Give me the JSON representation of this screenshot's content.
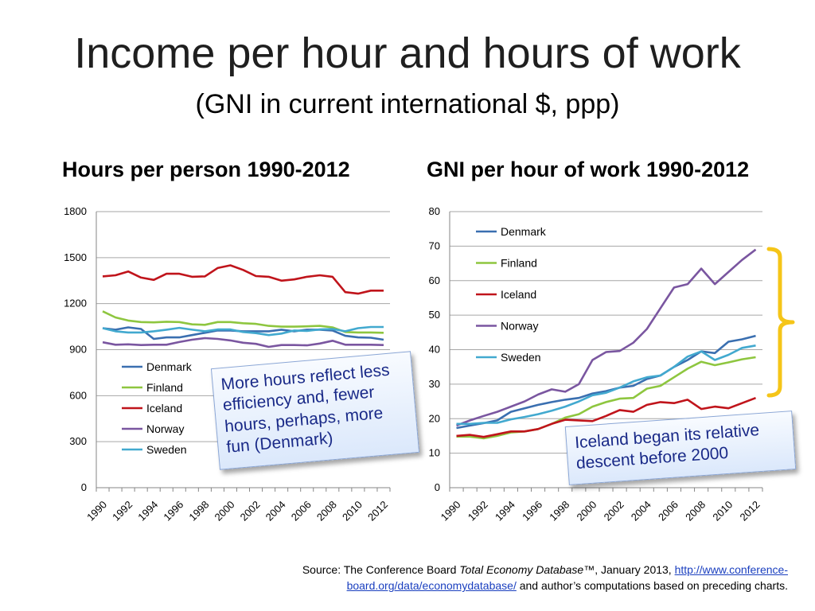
{
  "slide": {
    "title": "Income per hour and hours of work",
    "subtitle": "(GNI in current international $, ppp)"
  },
  "callouts": {
    "left": "More hours reflect less efficiency and, fewer hours, perhaps, more fun (Denmark)",
    "right": "Iceland began its relative descent before 2000"
  },
  "source": {
    "prefix": "Source: The Conference Board ",
    "italic": "Total Economy Database",
    "mid": "™, January 2013, ",
    "link": "http://www.conference-board.org/data/economydatabase/",
    "suffix": " and author’s computations based on preceding charts."
  },
  "colors": {
    "Denmark": "#3a6fb0",
    "Finland": "#8ec63f",
    "Iceland": "#c0141b",
    "Norway": "#7a56a0",
    "Sweden": "#42a9cf",
    "bracket": "#f5c518"
  },
  "chart_data": [
    {
      "type": "line",
      "title": "Hours per person 1990-2012",
      "x": [
        1990,
        1991,
        1992,
        1993,
        1994,
        1995,
        1996,
        1997,
        1998,
        1999,
        2000,
        2001,
        2002,
        2003,
        2004,
        2005,
        2006,
        2007,
        2008,
        2009,
        2010,
        2011,
        2012
      ],
      "xticks": [
        "1990",
        "1992",
        "1994",
        "1996",
        "1998",
        "2000",
        "2002",
        "2004",
        "2006",
        "2008",
        "2010",
        "2012"
      ],
      "ylim": [
        0,
        1800
      ],
      "yticks": [
        0,
        300,
        600,
        900,
        1200,
        1500,
        1800
      ],
      "grid": true,
      "legend": "inside-lower-left",
      "series": [
        {
          "name": "Denmark",
          "values": [
            1040,
            1030,
            1045,
            1035,
            970,
            980,
            980,
            995,
            1010,
            1025,
            1025,
            1020,
            1020,
            1020,
            1030,
            1020,
            1030,
            1030,
            1025,
            990,
            980,
            978,
            965
          ]
        },
        {
          "name": "Finland",
          "values": [
            1150,
            1110,
            1090,
            1080,
            1078,
            1082,
            1080,
            1065,
            1062,
            1080,
            1080,
            1072,
            1068,
            1055,
            1050,
            1050,
            1052,
            1055,
            1045,
            1015,
            1012,
            1012,
            1010
          ]
        },
        {
          "name": "Iceland",
          "values": [
            1378,
            1385,
            1410,
            1370,
            1355,
            1395,
            1395,
            1375,
            1378,
            1432,
            1450,
            1420,
            1380,
            1375,
            1350,
            1358,
            1375,
            1385,
            1375,
            1275,
            1265,
            1285,
            1285
          ]
        },
        {
          "name": "Norway",
          "values": [
            948,
            932,
            935,
            930,
            932,
            932,
            950,
            965,
            975,
            970,
            960,
            945,
            938,
            918,
            930,
            930,
            928,
            940,
            958,
            932,
            932,
            932,
            930
          ]
        },
        {
          "name": "Sweden",
          "values": [
            1040,
            1020,
            1012,
            1012,
            1020,
            1030,
            1042,
            1030,
            1020,
            1032,
            1032,
            1015,
            1008,
            995,
            1005,
            1025,
            1022,
            1032,
            1035,
            1020,
            1040,
            1048,
            1048
          ]
        }
      ]
    },
    {
      "type": "line",
      "title": "GNI per hour of work 1990-2012",
      "x": [
        1990,
        1991,
        1992,
        1993,
        1994,
        1995,
        1996,
        1997,
        1998,
        1999,
        2000,
        2001,
        2002,
        2003,
        2004,
        2005,
        2006,
        2007,
        2008,
        2009,
        2010,
        2011,
        2012
      ],
      "xticks": [
        "1990",
        "1992",
        "1994",
        "1996",
        "1998",
        "2000",
        "2002",
        "2004",
        "2006",
        "2008",
        "2010",
        "2012"
      ],
      "ylim": [
        0,
        80
      ],
      "yticks": [
        0,
        10,
        20,
        30,
        40,
        50,
        60,
        70,
        80
      ],
      "grid": true,
      "legend": "top-left",
      "series": [
        {
          "name": "Denmark",
          "values": [
            17.3,
            18.0,
            18.7,
            19.5,
            22.0,
            23.0,
            24.0,
            24.8,
            25.5,
            26.0,
            27.3,
            28.0,
            29.0,
            29.5,
            31.5,
            32.5,
            35.0,
            37.0,
            39.5,
            39.0,
            42.3,
            43.0,
            44.0
          ]
        },
        {
          "name": "Finland",
          "values": [
            14.8,
            14.8,
            14.3,
            15.0,
            16.0,
            16.3,
            17.0,
            18.5,
            20.3,
            21.3,
            23.5,
            24.8,
            25.8,
            26.0,
            28.7,
            29.5,
            32.0,
            34.5,
            36.5,
            35.5,
            36.3,
            37.2,
            37.8
          ]
        },
        {
          "name": "Iceland",
          "values": [
            15.0,
            15.3,
            14.7,
            15.5,
            16.3,
            16.3,
            17.0,
            18.5,
            19.7,
            19.5,
            19.3,
            20.8,
            22.5,
            22.0,
            24.0,
            24.8,
            24.5,
            25.5,
            22.8,
            23.5,
            23.0,
            24.5,
            26.0
          ]
        },
        {
          "name": "Norway",
          "values": [
            18.0,
            19.5,
            20.8,
            22.0,
            23.5,
            25.0,
            27.0,
            28.5,
            27.8,
            30.0,
            37.0,
            39.3,
            39.6,
            42.0,
            46.0,
            52.0,
            58.0,
            59.0,
            63.5,
            59.0,
            62.5,
            66.0,
            69.0
          ]
        },
        {
          "name": "Sweden",
          "values": [
            18.5,
            18.5,
            18.8,
            18.8,
            19.8,
            20.5,
            21.3,
            22.3,
            23.5,
            25.0,
            26.8,
            27.5,
            29.0,
            30.8,
            32.0,
            32.5,
            35.0,
            38.0,
            39.5,
            37.0,
            38.5,
            40.5,
            41.2
          ]
        }
      ]
    }
  ]
}
